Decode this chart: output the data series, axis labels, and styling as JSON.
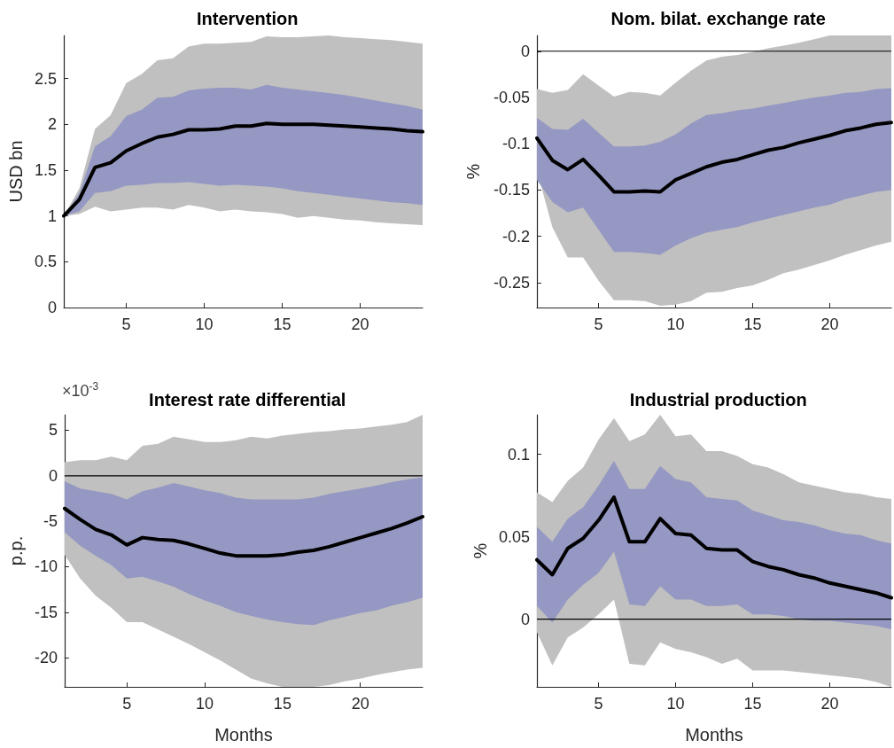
{
  "chart_data": [
    {
      "type": "line",
      "title": "Intervention",
      "ylabel": "USD bn",
      "x": [
        1,
        2,
        3,
        4,
        5,
        6,
        7,
        8,
        9,
        10,
        11,
        12,
        13,
        14,
        15,
        16,
        17,
        18,
        19,
        20,
        21,
        22,
        23,
        24
      ],
      "xlim": [
        1,
        24
      ],
      "xticks": [
        5,
        10,
        15,
        20
      ],
      "ylim": [
        0,
        2.97
      ],
      "yticks": [
        0,
        0.5,
        1,
        1.5,
        2,
        2.5
      ],
      "marker": "none",
      "series": [
        {
          "color": "#c0c0c0",
          "values": [
            null,
            null,
            null,
            null,
            null,
            null,
            null,
            null,
            null,
            null,
            null,
            null,
            null,
            null,
            null,
            null,
            null,
            null,
            null,
            null,
            null,
            null,
            null,
            null
          ],
          "upper": [
            1.0,
            1.3,
            1.95,
            2.1,
            2.45,
            2.55,
            2.7,
            2.72,
            2.85,
            2.88,
            2.88,
            2.89,
            2.9,
            2.96,
            2.95,
            2.95,
            2.96,
            2.97,
            2.95,
            2.94,
            2.93,
            2.92,
            2.9,
            2.88
          ],
          "lower": [
            1.0,
            1.02,
            1.1,
            1.05,
            1.07,
            1.09,
            1.09,
            1.07,
            1.12,
            1.09,
            1.05,
            1.07,
            1.05,
            1.04,
            1.02,
            0.98,
            1.0,
            0.98,
            0.96,
            0.95,
            0.93,
            0.92,
            0.91,
            0.9
          ]
        },
        {
          "color": "#9598c2",
          "values": [
            null,
            null,
            null,
            null,
            null,
            null,
            null,
            null,
            null,
            null,
            null,
            null,
            null,
            null,
            null,
            null,
            null,
            null,
            null,
            null,
            null,
            null,
            null,
            null
          ],
          "upper": [
            1.0,
            1.25,
            1.76,
            1.87,
            2.09,
            2.16,
            2.29,
            2.3,
            2.37,
            2.39,
            2.4,
            2.4,
            2.38,
            2.43,
            2.4,
            2.38,
            2.36,
            2.34,
            2.32,
            2.29,
            2.26,
            2.23,
            2.2,
            2.16
          ],
          "lower": [
            1.0,
            1.05,
            1.25,
            1.27,
            1.33,
            1.34,
            1.36,
            1.36,
            1.37,
            1.35,
            1.33,
            1.34,
            1.33,
            1.32,
            1.3,
            1.27,
            1.25,
            1.23,
            1.21,
            1.19,
            1.17,
            1.15,
            1.14,
            1.12
          ]
        },
        {
          "color": "#000000",
          "values": [
            1.0,
            1.18,
            1.53,
            1.58,
            1.71,
            1.79,
            1.86,
            1.89,
            1.94,
            1.94,
            1.95,
            1.98,
            1.98,
            2.01,
            2.0,
            2.0,
            2.0,
            1.99,
            1.98,
            1.97,
            1.96,
            1.95,
            1.93,
            1.92
          ]
        }
      ]
    },
    {
      "type": "line",
      "title": "Nom. bilat. exchange rate",
      "ylabel": "%",
      "x": [
        1,
        2,
        3,
        4,
        5,
        6,
        7,
        8,
        9,
        10,
        11,
        12,
        13,
        14,
        15,
        16,
        17,
        18,
        19,
        20,
        21,
        22,
        23,
        24
      ],
      "xlim": [
        1,
        24
      ],
      "xticks": [
        5,
        10,
        15,
        20
      ],
      "ylim": [
        -0.277,
        0.017
      ],
      "yticks": [
        -0.25,
        -0.2,
        -0.15,
        -0.1,
        -0.05,
        0
      ],
      "marker": "none",
      "ref_lines": [
        {
          "axis": "y",
          "value": 0,
          "color": "#000000"
        }
      ],
      "series": [
        {
          "color": "#c0c0c0",
          "values": [
            null,
            null,
            null,
            null,
            null,
            null,
            null,
            null,
            null,
            null,
            null,
            null,
            null,
            null,
            null,
            null,
            null,
            null,
            null,
            null,
            null,
            null,
            null,
            null
          ],
          "upper": [
            -0.041,
            -0.045,
            -0.042,
            -0.025,
            -0.037,
            -0.049,
            -0.044,
            -0.045,
            -0.048,
            -0.034,
            -0.021,
            -0.01,
            -0.006,
            -0.004,
            -0.001,
            0.003,
            0.006,
            0.009,
            0.013,
            0.017,
            0.017,
            0.017,
            0.017,
            0.017
          ],
          "lower": [
            -0.129,
            -0.19,
            -0.223,
            -0.223,
            -0.248,
            -0.269,
            -0.269,
            -0.27,
            -0.275,
            -0.274,
            -0.27,
            -0.261,
            -0.26,
            -0.256,
            -0.253,
            -0.247,
            -0.24,
            -0.236,
            -0.231,
            -0.226,
            -0.22,
            -0.215,
            -0.21,
            -0.206
          ]
        },
        {
          "color": "#9598c2",
          "values": [
            null,
            null,
            null,
            null,
            null,
            null,
            null,
            null,
            null,
            null,
            null,
            null,
            null,
            null,
            null,
            null,
            null,
            null,
            null,
            null,
            null,
            null,
            null,
            null
          ],
          "upper": [
            -0.072,
            -0.084,
            -0.085,
            -0.073,
            -0.088,
            -0.103,
            -0.103,
            -0.102,
            -0.098,
            -0.09,
            -0.078,
            -0.069,
            -0.067,
            -0.064,
            -0.062,
            -0.059,
            -0.056,
            -0.053,
            -0.05,
            -0.048,
            -0.045,
            -0.044,
            -0.041,
            -0.04
          ],
          "lower": [
            -0.139,
            -0.163,
            -0.174,
            -0.169,
            -0.193,
            -0.217,
            -0.217,
            -0.218,
            -0.22,
            -0.21,
            -0.202,
            -0.196,
            -0.193,
            -0.19,
            -0.185,
            -0.181,
            -0.177,
            -0.173,
            -0.169,
            -0.166,
            -0.16,
            -0.156,
            -0.152,
            -0.15
          ]
        },
        {
          "color": "#000000",
          "values": [
            -0.094,
            -0.118,
            -0.128,
            -0.117,
            -0.134,
            -0.152,
            -0.152,
            -0.151,
            -0.152,
            -0.139,
            -0.132,
            -0.125,
            -0.12,
            -0.117,
            -0.112,
            -0.107,
            -0.104,
            -0.099,
            -0.095,
            -0.091,
            -0.086,
            -0.083,
            -0.079,
            -0.077
          ]
        }
      ]
    },
    {
      "type": "line",
      "title": "Interest rate differential",
      "ylabel": "p.p.",
      "xlabel": "Months",
      "annotations": [
        "×10$^{-3}$"
      ],
      "x": [
        1,
        2,
        3,
        4,
        5,
        6,
        7,
        8,
        9,
        10,
        11,
        12,
        13,
        14,
        15,
        16,
        17,
        18,
        19,
        20,
        21,
        22,
        23,
        24
      ],
      "xlim": [
        1,
        24
      ],
      "xticks": [
        5,
        10,
        15,
        20
      ],
      "ylim": [
        -23.2,
        6.7
      ],
      "yticks": [
        -20,
        -15,
        -10,
        -5,
        0,
        5
      ],
      "marker": "none",
      "ref_lines": [
        {
          "axis": "y",
          "value": 0,
          "color": "#000000"
        }
      ],
      "series": [
        {
          "color": "#c0c0c0",
          "values": [
            null,
            null,
            null,
            null,
            null,
            null,
            null,
            null,
            null,
            null,
            null,
            null,
            null,
            null,
            null,
            null,
            null,
            null,
            null,
            null,
            null,
            null,
            null,
            null
          ],
          "upper": [
            1.5,
            1.7,
            1.7,
            2.1,
            1.7,
            3.3,
            3.5,
            4.3,
            4.0,
            3.7,
            3.7,
            3.9,
            4.3,
            4.1,
            4.4,
            4.6,
            4.8,
            4.9,
            5.1,
            5.2,
            5.4,
            5.6,
            5.9,
            6.7
          ],
          "lower": [
            -8.7,
            -11.3,
            -13.2,
            -14.5,
            -16.1,
            -16.1,
            -16.9,
            -17.7,
            -18.5,
            -19.4,
            -20.3,
            -21.3,
            -22.3,
            -22.8,
            -23.2,
            -23.2,
            -23.2,
            -23.0,
            -22.6,
            -22.3,
            -21.9,
            -21.6,
            -21.3,
            -21.1
          ]
        },
        {
          "color": "#9598c2",
          "values": [
            null,
            null,
            null,
            null,
            null,
            null,
            null,
            null,
            null,
            null,
            null,
            null,
            null,
            null,
            null,
            null,
            null,
            null,
            null,
            null,
            null,
            null,
            null,
            null
          ],
          "upper": [
            -0.6,
            -1.4,
            -1.7,
            -2.0,
            -2.6,
            -1.7,
            -1.3,
            -0.8,
            -1.2,
            -1.6,
            -1.9,
            -2.4,
            -2.6,
            -2.6,
            -2.6,
            -2.6,
            -2.4,
            -2.0,
            -1.7,
            -1.4,
            -1.1,
            -0.7,
            -0.4,
            -0.2
          ],
          "lower": [
            -6.2,
            -7.7,
            -8.8,
            -9.8,
            -11.3,
            -11.1,
            -11.6,
            -12.2,
            -13.0,
            -13.7,
            -14.3,
            -15.0,
            -15.4,
            -15.8,
            -16.1,
            -16.3,
            -16.4,
            -15.9,
            -15.5,
            -15.1,
            -14.8,
            -14.3,
            -13.9,
            -13.4
          ]
        },
        {
          "color": "#000000",
          "values": [
            -3.6,
            -4.8,
            -5.9,
            -6.5,
            -7.6,
            -6.8,
            -7.0,
            -7.1,
            -7.5,
            -8.0,
            -8.5,
            -8.8,
            -8.8,
            -8.8,
            -8.7,
            -8.4,
            -8.2,
            -7.8,
            -7.3,
            -6.8,
            -6.3,
            -5.8,
            -5.2,
            -4.5
          ]
        }
      ]
    },
    {
      "type": "line",
      "title": "Industrial production",
      "ylabel": "%",
      "xlabel": "Months",
      "x": [
        1,
        2,
        3,
        4,
        5,
        6,
        7,
        8,
        9,
        10,
        11,
        12,
        13,
        14,
        15,
        16,
        17,
        18,
        19,
        20,
        21,
        22,
        23,
        24
      ],
      "xlim": [
        1,
        24
      ],
      "xticks": [
        5,
        10,
        15,
        20
      ],
      "ylim": [
        -0.041,
        0.124
      ],
      "yticks": [
        0,
        0.05,
        0.1
      ],
      "marker": "none",
      "ref_lines": [
        {
          "axis": "y",
          "value": 0,
          "color": "#000000"
        }
      ],
      "series": [
        {
          "color": "#c0c0c0",
          "values": [
            null,
            null,
            null,
            null,
            null,
            null,
            null,
            null,
            null,
            null,
            null,
            null,
            null,
            null,
            null,
            null,
            null,
            null,
            null,
            null,
            null,
            null,
            null,
            null
          ],
          "upper": [
            0.077,
            0.071,
            0.084,
            0.092,
            0.109,
            0.122,
            0.108,
            0.112,
            0.124,
            0.111,
            0.112,
            0.102,
            0.102,
            0.099,
            0.094,
            0.092,
            0.088,
            0.083,
            0.081,
            0.079,
            0.077,
            0.076,
            0.074,
            0.073
          ],
          "lower": [
            -0.008,
            -0.028,
            -0.011,
            -0.005,
            0.003,
            0.012,
            -0.027,
            -0.028,
            -0.014,
            -0.018,
            -0.02,
            -0.023,
            -0.027,
            -0.024,
            -0.031,
            -0.031,
            -0.031,
            -0.032,
            -0.033,
            -0.034,
            -0.035,
            -0.036,
            -0.038,
            -0.041
          ]
        },
        {
          "color": "#9598c2",
          "values": [
            null,
            null,
            null,
            null,
            null,
            null,
            null,
            null,
            null,
            null,
            null,
            null,
            null,
            null,
            null,
            null,
            null,
            null,
            null,
            null,
            null,
            null,
            null,
            null
          ],
          "upper": [
            0.056,
            0.047,
            0.061,
            0.068,
            0.081,
            0.096,
            0.079,
            0.079,
            0.093,
            0.085,
            0.083,
            0.074,
            0.073,
            0.072,
            0.066,
            0.063,
            0.06,
            0.059,
            0.057,
            0.054,
            0.052,
            0.051,
            0.048,
            0.046
          ],
          "lower": [
            0.008,
            -0.002,
            0.012,
            0.021,
            0.028,
            0.041,
            0.009,
            0.008,
            0.02,
            0.012,
            0.012,
            0.008,
            0.008,
            0.009,
            0.003,
            0.003,
            0.002,
            0.0,
            -0.001,
            -0.001,
            -0.002,
            -0.003,
            -0.004,
            -0.006
          ]
        },
        {
          "color": "#000000",
          "values": [
            0.036,
            0.027,
            0.043,
            0.049,
            0.06,
            0.074,
            0.047,
            0.047,
            0.061,
            0.052,
            0.051,
            0.043,
            0.042,
            0.042,
            0.035,
            0.032,
            0.03,
            0.027,
            0.025,
            0.022,
            0.02,
            0.018,
            0.016,
            0.013
          ]
        }
      ]
    }
  ]
}
